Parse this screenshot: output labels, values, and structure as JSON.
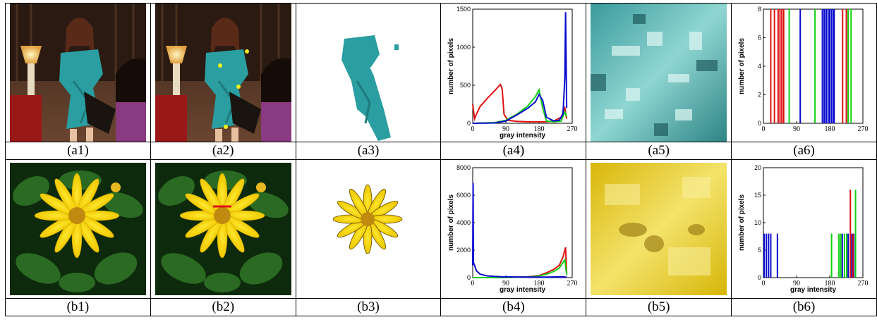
{
  "figure": {
    "captions": {
      "a1": "(a1)",
      "a2": "(a2)",
      "a3": "(a3)",
      "a4": "(a4)",
      "a5": "(a5)",
      "a6": "(a6)",
      "b1": "(b1)",
      "b2": "(b2)",
      "b3": "(b3)",
      "b4": "(b4)",
      "b5": "(b5)",
      "b6": "(b6)"
    },
    "colors": {
      "red": "#e01010",
      "green": "#10d010",
      "blue": "#0a0ad0",
      "teal": "#2a9ea0",
      "yellow": "#f5d80a",
      "leaf": "#1f5a1a"
    }
  },
  "chart_data": [
    {
      "id": "a4",
      "type": "line",
      "xlabel": "gray intensity",
      "ylabel": "number of pixels",
      "xlim": [
        0,
        270
      ],
      "ylim": [
        0,
        1500
      ],
      "xticks": [
        "0",
        "90",
        "180",
        "270"
      ],
      "yticks": [
        "0",
        "500",
        "1000",
        "1500"
      ],
      "series": [
        {
          "color": "red",
          "x": [
            0,
            5,
            10,
            20,
            40,
            60,
            75,
            80,
            85,
            95,
            120,
            150,
            170,
            200,
            220,
            240,
            250,
            255
          ],
          "y": [
            250,
            60,
            120,
            220,
            330,
            430,
            510,
            450,
            120,
            40,
            25,
            20,
            20,
            20,
            30,
            80,
            200,
            60
          ]
        },
        {
          "color": "green",
          "x": [
            0,
            60,
            90,
            120,
            150,
            170,
            180,
            190,
            200,
            220,
            240,
            250,
            255
          ],
          "y": [
            0,
            10,
            40,
            120,
            230,
            350,
            440,
            200,
            30,
            20,
            30,
            150,
            90
          ]
        },
        {
          "color": "blue",
          "x": [
            0,
            60,
            90,
            120,
            150,
            170,
            180,
            190,
            200,
            220,
            235,
            245,
            250,
            252,
            255
          ],
          "y": [
            0,
            5,
            30,
            110,
            200,
            280,
            380,
            300,
            80,
            30,
            40,
            120,
            600,
            1460,
            200
          ]
        }
      ]
    },
    {
      "id": "a6",
      "type": "bar",
      "xlabel": "",
      "ylabel": "number of pixels",
      "xlim": [
        0,
        270
      ],
      "ylim": [
        0,
        8
      ],
      "xticks": [
        "0",
        "90",
        "180",
        "270"
      ],
      "yticks": [
        "0",
        "2",
        "4",
        "6",
        "8"
      ],
      "series": [
        {
          "color": "red",
          "x": [
            20,
            30,
            40,
            45,
            50,
            55,
            215,
            225,
            230
          ],
          "y": [
            8,
            8,
            8,
            8,
            8,
            8,
            8,
            8,
            8
          ]
        },
        {
          "color": "green",
          "x": [
            70,
            140,
            230,
            238
          ],
          "y": [
            8,
            8,
            8,
            8
          ]
        },
        {
          "color": "blue",
          "x": [
            100,
            160,
            165,
            170,
            172,
            178,
            180,
            185,
            190,
            192
          ],
          "y": [
            8,
            8,
            8,
            8,
            8,
            8,
            8,
            8,
            8,
            8
          ]
        }
      ]
    },
    {
      "id": "b4",
      "type": "line",
      "xlabel": "gray intensity",
      "ylabel": "number of pixels",
      "xlim": [
        0,
        270
      ],
      "ylim": [
        0,
        8000
      ],
      "xticks": [
        "0",
        "90",
        "180",
        "270"
      ],
      "yticks": [
        "0",
        "2000",
        "4000",
        "6000",
        "8000"
      ],
      "series": [
        {
          "color": "red",
          "x": [
            0,
            50,
            100,
            150,
            180,
            200,
            220,
            235,
            245,
            250,
            252,
            255
          ],
          "y": [
            0,
            0,
            20,
            60,
            150,
            350,
            600,
            900,
            1500,
            2000,
            2200,
            300
          ]
        },
        {
          "color": "green",
          "x": [
            0,
            50,
            100,
            150,
            180,
            200,
            220,
            235,
            245,
            250,
            255
          ],
          "y": [
            0,
            0,
            10,
            40,
            120,
            250,
            450,
            700,
            1100,
            1300,
            200
          ]
        },
        {
          "color": "blue",
          "x": [
            0,
            1,
            2,
            5,
            10,
            20,
            40,
            80,
            150,
            200,
            240,
            255
          ],
          "y": [
            900,
            6900,
            1100,
            900,
            500,
            250,
            120,
            60,
            40,
            40,
            60,
            40
          ]
        }
      ]
    },
    {
      "id": "b6",
      "type": "bar",
      "xlabel": "gray intensity",
      "ylabel": "number of pixels",
      "xlim": [
        0,
        270
      ],
      "ylim": [
        0,
        20
      ],
      "xticks": [
        "0",
        "90",
        "180",
        "270"
      ],
      "yticks": [
        "0",
        "5",
        "10",
        "15",
        "20"
      ],
      "series": [
        {
          "color": "blue",
          "x": [
            2,
            8,
            14,
            20,
            38,
            214,
            230,
            240,
            245
          ],
          "y": [
            8,
            8,
            8,
            8,
            8,
            8,
            8,
            8,
            8
          ]
        },
        {
          "color": "green",
          "x": [
            185,
            205,
            210,
            220,
            226,
            250
          ],
          "y": [
            8,
            8,
            8,
            8,
            8,
            16
          ]
        },
        {
          "color": "red",
          "x": [
            236,
            243
          ],
          "y": [
            16,
            8
          ]
        }
      ]
    }
  ]
}
